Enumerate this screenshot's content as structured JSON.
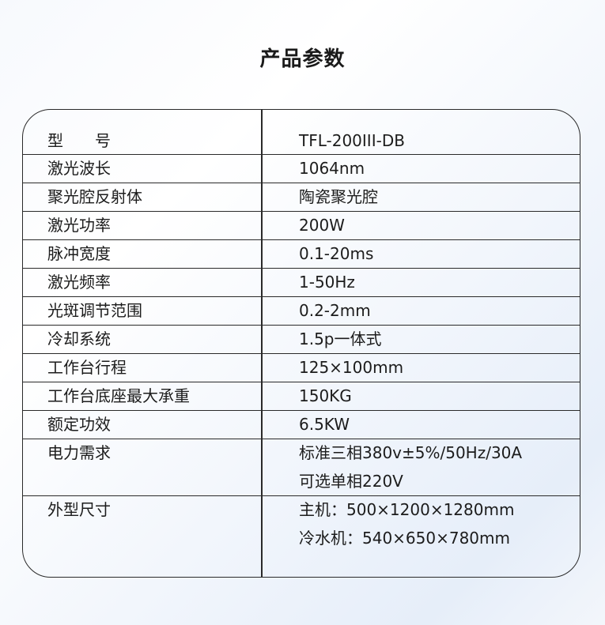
{
  "title": "产品参数",
  "rows": [
    {
      "label": "型　　号",
      "values": [
        "TFL-200III-DB"
      ]
    },
    {
      "label": "激光波长",
      "values": [
        "1064nm"
      ]
    },
    {
      "label": "聚光腔反射体",
      "values": [
        "陶瓷聚光腔"
      ]
    },
    {
      "label": "激光功率",
      "values": [
        "200W"
      ]
    },
    {
      "label": "脉冲宽度",
      "values": [
        "0.1-20ms"
      ]
    },
    {
      "label": "激光频率",
      "values": [
        "1-50Hz"
      ]
    },
    {
      "label": "光斑调节范围",
      "values": [
        "0.2-2mm"
      ]
    },
    {
      "label": "冷却系统",
      "values": [
        "1.5p一体式"
      ]
    },
    {
      "label": "工作台行程",
      "values": [
        "125×100mm"
      ]
    },
    {
      "label": "工作台底座最大承重",
      "values": [
        "150KG"
      ]
    },
    {
      "label": "额定功效",
      "values": [
        "6.5KW"
      ]
    },
    {
      "label": "电力需求",
      "values": [
        "标准三相380v±5%/50Hz/30A",
        "可选单相220V"
      ]
    },
    {
      "label": "外型尺寸",
      "values": [
        "主机：500×1200×1280mm",
        "冷水机：540×650×780mm"
      ]
    }
  ]
}
